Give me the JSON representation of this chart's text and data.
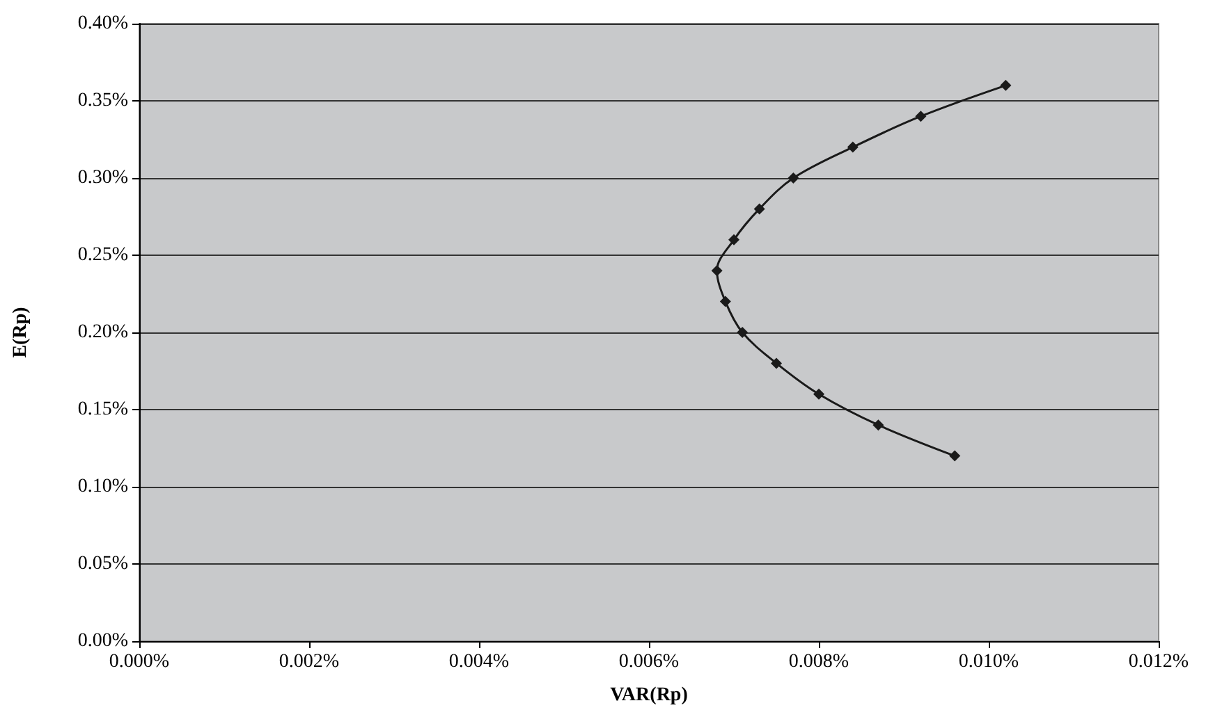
{
  "chart_data": {
    "type": "line",
    "xlabel": "VAR(Rp)",
    "ylabel": "E(Rp)",
    "series": [
      {
        "color": "#1a1a1a",
        "x": [
          0.0096,
          0.0087,
          0.008,
          0.0075,
          0.0071,
          0.0069,
          0.0068,
          0.007,
          0.0073,
          0.0077,
          0.0084,
          0.0092,
          0.0102
        ],
        "values": [
          0.12,
          0.14,
          0.16,
          0.18,
          0.2,
          0.22,
          0.24,
          0.26,
          0.28,
          0.3,
          0.32,
          0.34,
          0.36
        ]
      }
    ],
    "xlim": [
      0,
      0.012
    ],
    "ylim": [
      0,
      0.4
    ],
    "xticks": [
      {
        "value": 0,
        "label": "0.000%"
      },
      {
        "value": 0.002,
        "label": "0.002%"
      },
      {
        "value": 0.004,
        "label": "0.004%"
      },
      {
        "value": 0.006,
        "label": "0.006%"
      },
      {
        "value": 0.008,
        "label": "0.008%"
      },
      {
        "value": 0.01,
        "label": "0.010%"
      },
      {
        "value": 0.012,
        "label": "0.012%"
      }
    ],
    "yticks": [
      {
        "value": 0,
        "label": "0.00%"
      },
      {
        "value": 0.05,
        "label": "0.05%"
      },
      {
        "value": 0.1,
        "label": "0.10%"
      },
      {
        "value": 0.15,
        "label": "0.15%"
      },
      {
        "value": 0.2,
        "label": "0.20%"
      },
      {
        "value": 0.25,
        "label": "0.25%"
      },
      {
        "value": 0.3,
        "label": "0.30%"
      },
      {
        "value": 0.35,
        "label": "0.35%"
      },
      {
        "value": 0.4,
        "label": "0.40%"
      }
    ],
    "grid": "y",
    "marker": "diamond",
    "line_style": "solid"
  }
}
